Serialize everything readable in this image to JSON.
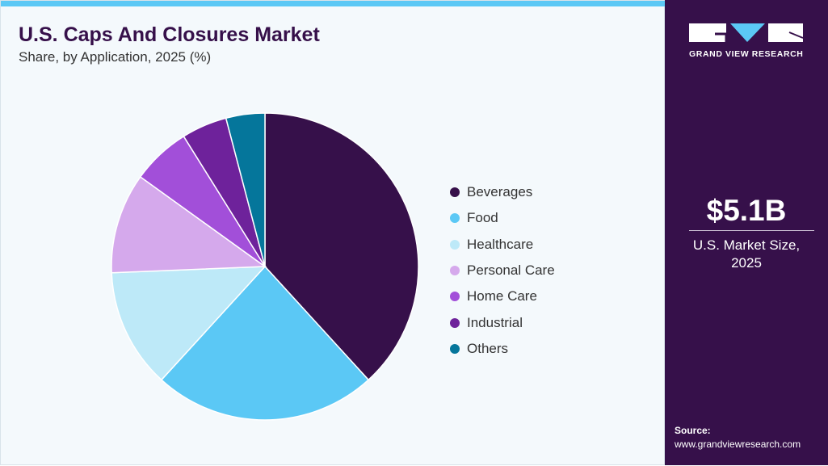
{
  "header": {
    "title": "U.S. Caps And Closures Market",
    "subtitle": "Share, by Application, 2025 (%)"
  },
  "sidebar": {
    "logo_text": "GRAND VIEW RESEARCH",
    "market_size": "$5.1B",
    "market_label_1": "U.S. Market Size,",
    "market_label_2": "2025",
    "source_label": "Source:",
    "source_url": "www.grandviewresearch.com"
  },
  "colors": {
    "accent": "#5bc8f5",
    "brand": "#36104a"
  },
  "chart_data": {
    "type": "pie",
    "title": "U.S. Caps And Closures Market",
    "subtitle": "Share, by Application, 2025 (%)",
    "legend_position": "right",
    "categories": [
      "Beverages",
      "Food",
      "Healthcare",
      "Personal Care",
      "Home Care",
      "Industrial",
      "Others"
    ],
    "values": [
      38.3,
      23.6,
      12.6,
      10.6,
      6.2,
      4.8,
      4.1
    ],
    "colors": [
      "#36104a",
      "#5bc8f5",
      "#bde9f8",
      "#d5a9ec",
      "#a24fd9",
      "#6e229b",
      "#05769b"
    ]
  }
}
